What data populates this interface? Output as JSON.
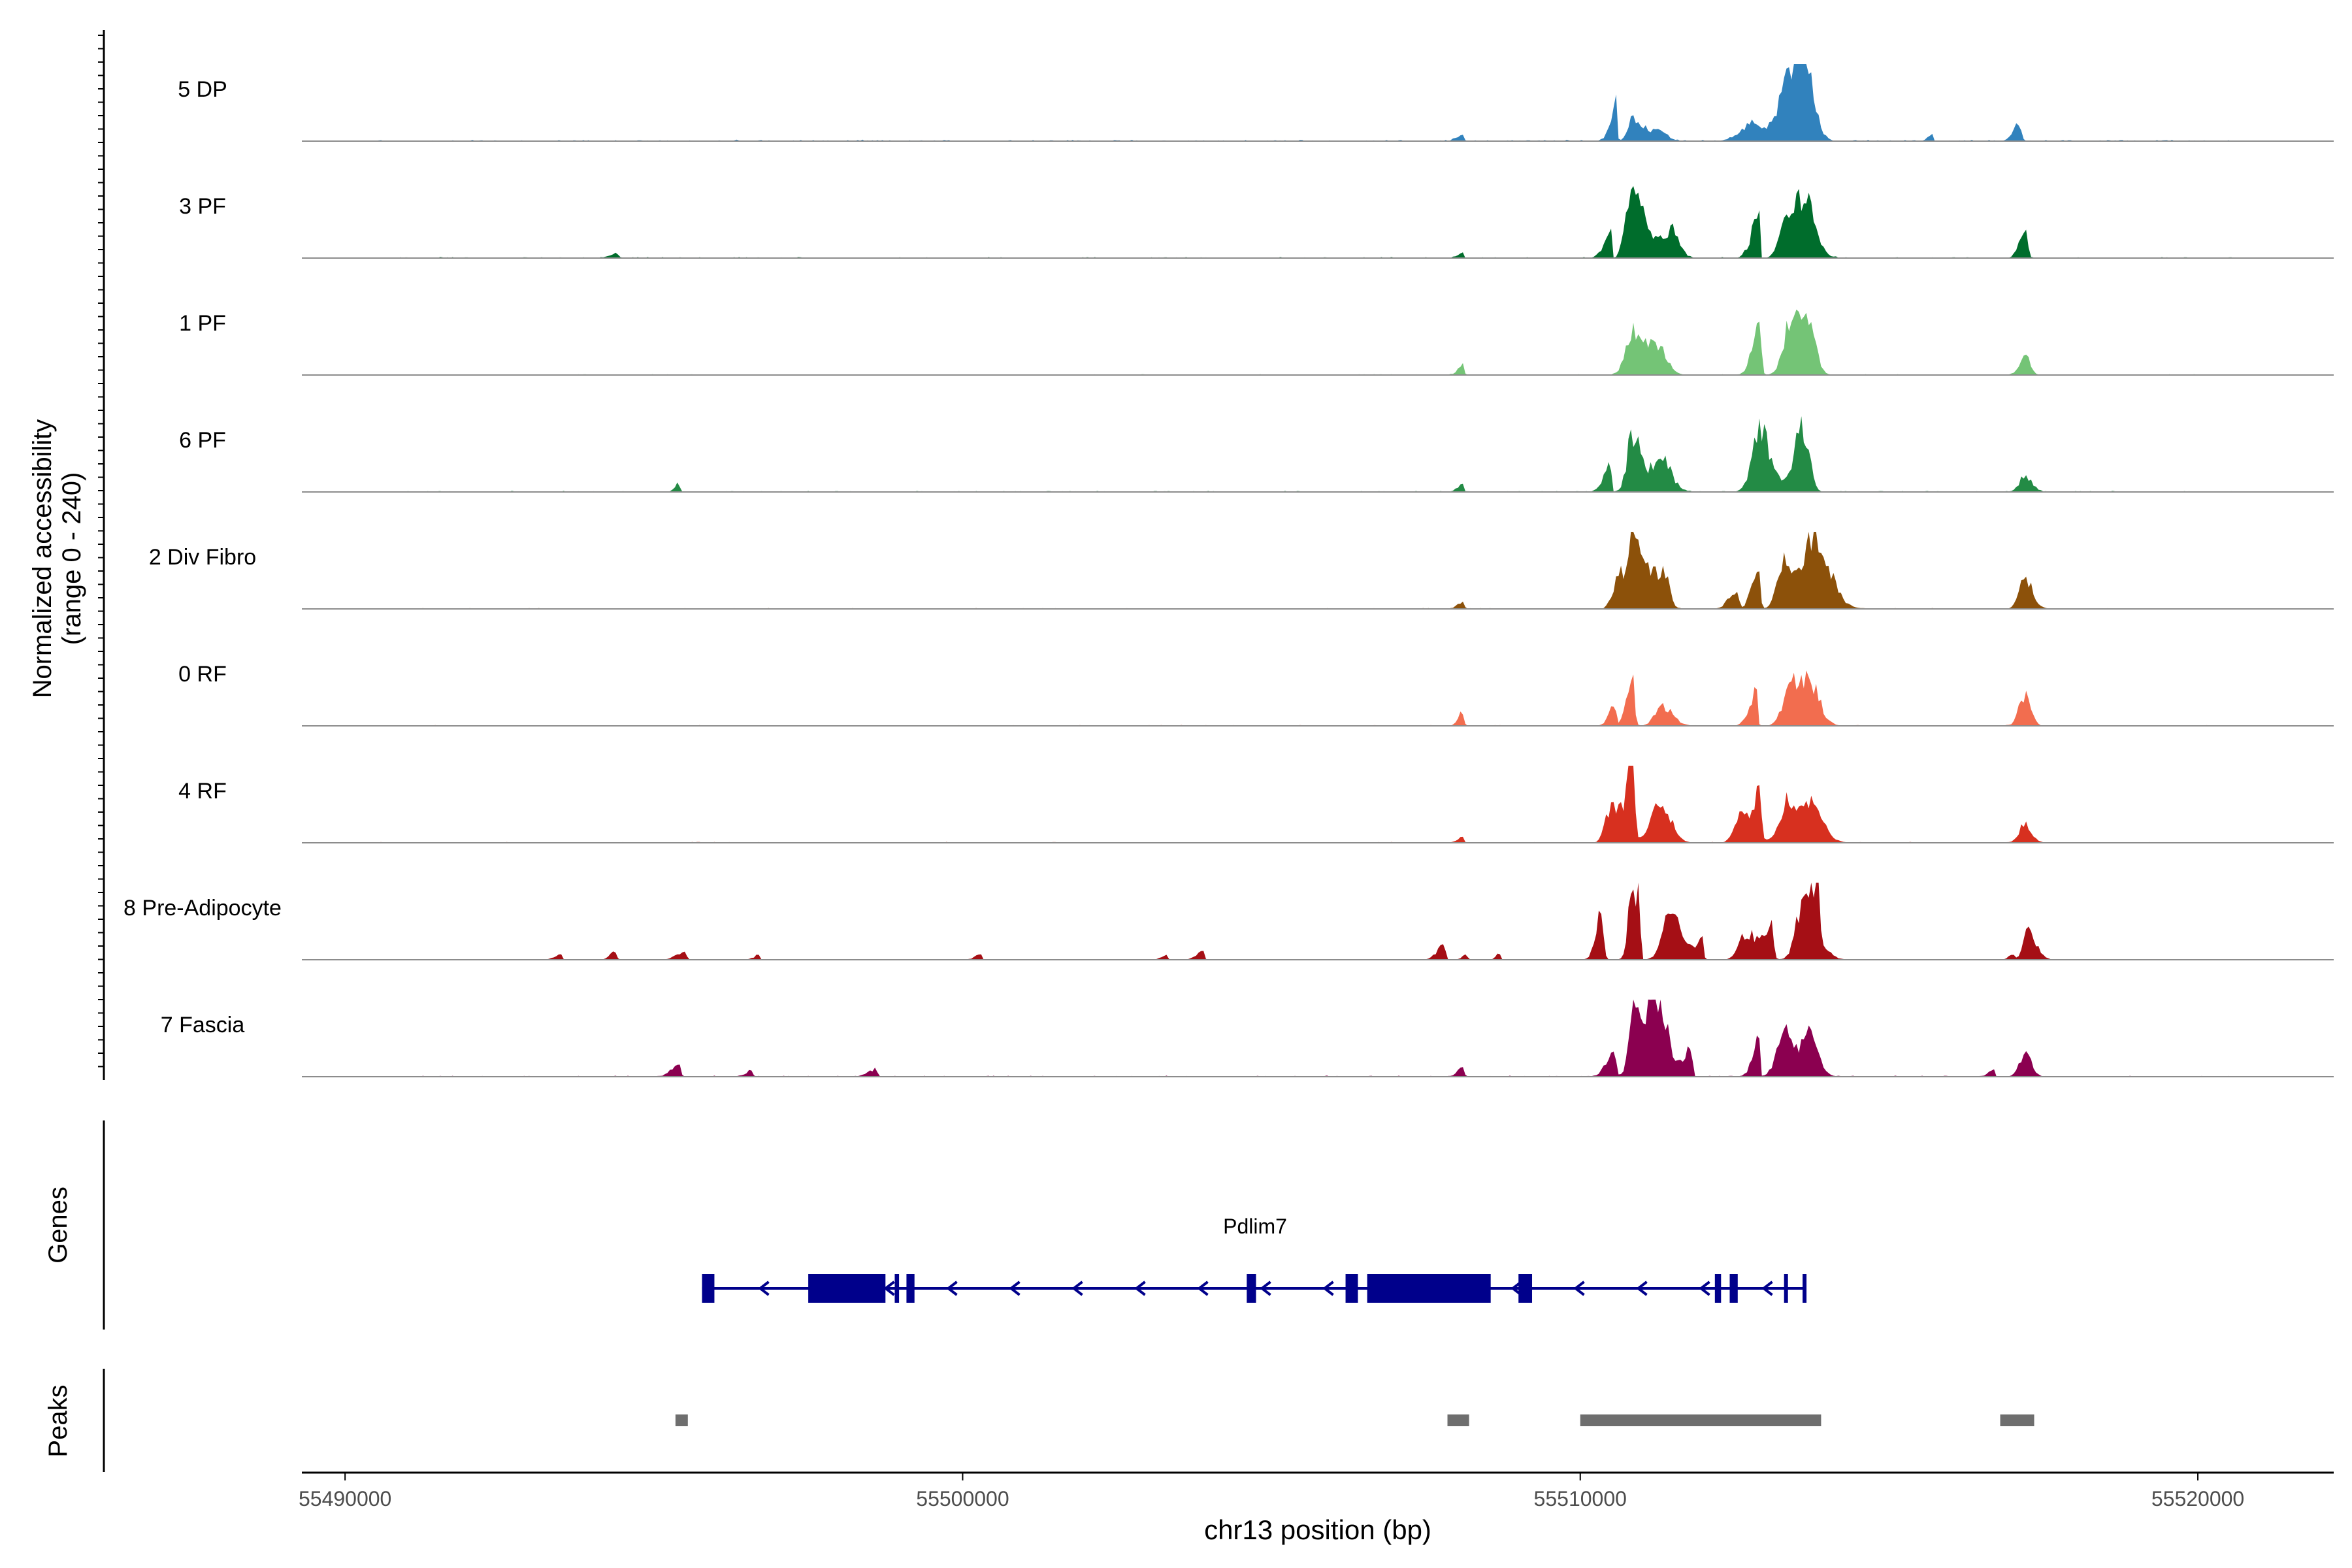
{
  "chart_data": {
    "type": "area",
    "title": "",
    "xlabel": "chr13 position (bp)",
    "ylabel_line1": "Normalized accessibility",
    "ylabel_line2": "(range 0 - 240)",
    "yrange": [
      0,
      240
    ],
    "xlim": [
      55489300,
      55522200
    ],
    "x_ticks": [
      55490000,
      55500000,
      55510000,
      55520000
    ],
    "x_tick_labels": [
      "55490000",
      "55500000",
      "55510000",
      "55520000"
    ],
    "tracks": [
      {
        "name": "5 DP",
        "color": "#3182bd",
        "base": 20,
        "peaks": [
          [
            55510600,
            100,
            8,
            0.5
          ],
          [
            55510850,
            80,
            220,
            0.28
          ],
          [
            55511300,
            90,
            120,
            0.1
          ],
          [
            55512800,
            200,
            90,
            0.22
          ],
          [
            55513500,
            260,
            180,
            0.8
          ],
          [
            55513700,
            200,
            120,
            0.55
          ],
          [
            55517100,
            90,
            40,
            0.22
          ],
          [
            55515700,
            70,
            10,
            0.08
          ],
          [
            55508100,
            90,
            20,
            0.08
          ]
        ]
      },
      {
        "name": "3 PF",
        "color": "#006d2c",
        "base": 15,
        "peaks": [
          [
            55510500,
            110,
            3,
            0.35
          ],
          [
            55510800,
            80,
            260,
            0.85
          ],
          [
            55511500,
            130,
            110,
            0.35
          ],
          [
            55512900,
            120,
            10,
            0.55
          ],
          [
            55513300,
            90,
            110,
            0.3
          ],
          [
            55513600,
            170,
            180,
            0.8
          ],
          [
            55517200,
            90,
            40,
            0.35
          ],
          [
            55494400,
            110,
            30,
            0.06
          ],
          [
            55508100,
            80,
            10,
            0.06
          ]
        ]
      },
      {
        "name": "1 PF",
        "color": "#74c476",
        "base": 12,
        "peaks": [
          [
            55510850,
            110,
            260,
            0.55
          ],
          [
            55511300,
            120,
            120,
            0.22
          ],
          [
            55512900,
            110,
            30,
            0.65
          ],
          [
            55513400,
            110,
            110,
            0.65
          ],
          [
            55513650,
            100,
            130,
            0.85
          ],
          [
            55517200,
            90,
            80,
            0.25
          ],
          [
            55508100,
            80,
            20,
            0.12
          ]
        ]
      },
      {
        "name": "6 PF",
        "color": "#238b45",
        "base": 15,
        "peaks": [
          [
            55510500,
            110,
            5,
            0.35
          ],
          [
            55510850,
            90,
            130,
            0.75
          ],
          [
            55511300,
            150,
            160,
            0.45
          ],
          [
            55512900,
            120,
            180,
            0.8
          ],
          [
            55513600,
            140,
            100,
            0.85
          ],
          [
            55517200,
            90,
            110,
            0.2
          ],
          [
            55495400,
            60,
            20,
            0.12
          ],
          [
            55508100,
            80,
            20,
            0.1
          ]
        ]
      },
      {
        "name": "2 Div Fibro",
        "color": "#8c510a",
        "base": 12,
        "peaks": [
          [
            55510650,
            100,
            30,
            0.45
          ],
          [
            55510850,
            90,
            240,
            0.95
          ],
          [
            55511400,
            140,
            60,
            0.4
          ],
          [
            55512550,
            130,
            20,
            0.25
          ],
          [
            55512900,
            110,
            20,
            0.55
          ],
          [
            55513300,
            110,
            120,
            0.6
          ],
          [
            55513750,
            150,
            250,
            1.0
          ],
          [
            55517200,
            90,
            120,
            0.4
          ],
          [
            55508100,
            80,
            20,
            0.1
          ]
        ]
      },
      {
        "name": "0 RF",
        "color": "#f26d4f",
        "base": 12,
        "peaks": [
          [
            55510550,
            90,
            30,
            0.25
          ],
          [
            55510850,
            90,
            30,
            0.7
          ],
          [
            55511350,
            130,
            150,
            0.25
          ],
          [
            55512850,
            110,
            20,
            0.45
          ],
          [
            55513400,
            110,
            120,
            0.55
          ],
          [
            55513700,
            120,
            160,
            0.6
          ],
          [
            55517200,
            90,
            90,
            0.4
          ],
          [
            55508100,
            70,
            20,
            0.18
          ]
        ]
      },
      {
        "name": "4 RF",
        "color": "#d7301f",
        "base": 12,
        "peaks": [
          [
            55510500,
            90,
            200,
            0.45
          ],
          [
            55510850,
            90,
            30,
            1.0
          ],
          [
            55511300,
            140,
            160,
            0.55
          ],
          [
            55512600,
            100,
            200,
            0.35
          ],
          [
            55512900,
            90,
            30,
            0.55
          ],
          [
            55513350,
            110,
            120,
            0.55
          ],
          [
            55513700,
            130,
            200,
            0.5
          ],
          [
            55517200,
            90,
            100,
            0.25
          ],
          [
            55508100,
            80,
            20,
            0.08
          ]
        ]
      },
      {
        "name": "8 Pre-Adipocyte",
        "color": "#a50f15",
        "base": 6,
        "peaks": [
          [
            55510350,
            90,
            30,
            0.65
          ],
          [
            55510850,
            70,
            10,
            0.85
          ],
          [
            55510950,
            80,
            20,
            0.95
          ],
          [
            55511450,
            120,
            160,
            0.65
          ],
          [
            55512000,
            150,
            10,
            0.25
          ],
          [
            55512700,
            120,
            180,
            0.35
          ],
          [
            55513100,
            110,
            30,
            0.4
          ],
          [
            55513600,
            110,
            220,
            0.7
          ],
          [
            55513850,
            90,
            20,
            0.75
          ],
          [
            55517000,
            60,
            20,
            0.08
          ],
          [
            55517250,
            80,
            130,
            0.35
          ],
          [
            55507800,
            120,
            20,
            0.18
          ],
          [
            55508150,
            60,
            20,
            0.08
          ],
          [
            55508700,
            60,
            10,
            0.08
          ],
          [
            55493500,
            100,
            20,
            0.07
          ],
          [
            55494400,
            90,
            10,
            0.12
          ],
          [
            55495500,
            130,
            30,
            0.1
          ],
          [
            55496700,
            80,
            20,
            0.06
          ],
          [
            55500300,
            90,
            10,
            0.08
          ],
          [
            55503300,
            90,
            20,
            0.06
          ],
          [
            55503900,
            110,
            20,
            0.1
          ]
        ]
      },
      {
        "name": "7 Fascia",
        "color": "#8b0050",
        "base": 15,
        "peaks": [
          [
            55510550,
            120,
            30,
            0.35
          ],
          [
            55510900,
            90,
            240,
            0.98
          ],
          [
            55511300,
            120,
            130,
            0.8
          ],
          [
            55511800,
            140,
            20,
            0.35
          ],
          [
            55512900,
            100,
            10,
            0.5
          ],
          [
            55513300,
            120,
            120,
            0.55
          ],
          [
            55513700,
            140,
            140,
            0.6
          ],
          [
            55516700,
            90,
            10,
            0.08
          ],
          [
            55517200,
            90,
            100,
            0.3
          ],
          [
            55495400,
            120,
            30,
            0.16
          ],
          [
            55496600,
            100,
            10,
            0.08
          ],
          [
            55498600,
            130,
            20,
            0.1
          ],
          [
            55508100,
            80,
            20,
            0.12
          ]
        ]
      }
    ],
    "genes": {
      "title": "Genes",
      "name": "Pdlim7",
      "strand": "-",
      "range": [
        55495780,
        55513650
      ],
      "exons": [
        [
          55495780,
          55495980
        ],
        [
          55497500,
          55498750
        ],
        [
          55498900,
          55498970
        ],
        [
          55499090,
          55499220
        ],
        [
          55504600,
          55504750
        ],
        [
          55506200,
          55506400
        ],
        [
          55506550,
          55508550
        ],
        [
          55509000,
          55509220
        ],
        [
          55512180,
          55512280
        ],
        [
          55512420,
          55512550
        ],
        [
          55513300,
          55513340
        ],
        [
          55513600,
          55513650
        ]
      ],
      "color": "#00008b"
    },
    "peaks": {
      "title": "Peaks",
      "regions": [
        [
          55495350,
          55495550
        ],
        [
          55507850,
          55508200
        ],
        [
          55510000,
          55513900
        ],
        [
          55516800,
          55517350
        ]
      ],
      "color": "#6e6e6e"
    }
  }
}
